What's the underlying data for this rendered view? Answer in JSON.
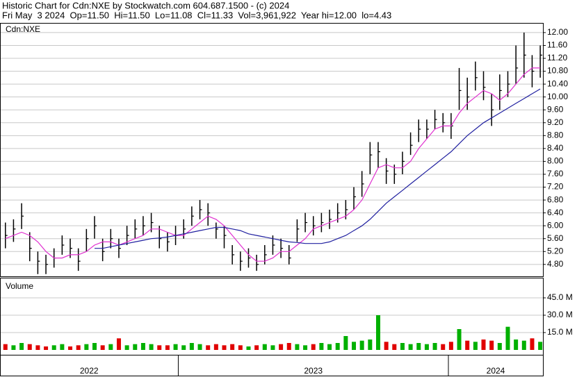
{
  "chart_data": [
    {
      "type": "ohlc",
      "title": "Historic Chart for Cdn:NXE by Stockwatch.com 604.687.1500 - (c) 2024",
      "subtitle": "Fri May  3 2024  Op=11.50  Hi=11.50  Lo=11.08  Cl=11.33  Vol=3,961,922  Year hi=12.00  lo=4.43",
      "label": "Cdn:NXE",
      "color": "#000000",
      "grid": true,
      "xlim": [
        2022.34,
        2024.35
      ],
      "ylim": [
        4.43,
        12.3
      ],
      "yticks": [
        {
          "value": 4.8,
          "label": "4.80"
        },
        {
          "value": 5.2,
          "label": "5.20"
        },
        {
          "value": 5.6,
          "label": "5.60"
        },
        {
          "value": 6.0,
          "label": "6.00"
        },
        {
          "value": 6.4,
          "label": "6.40"
        },
        {
          "value": 6.8,
          "label": "6.80"
        },
        {
          "value": 7.2,
          "label": "7.20"
        },
        {
          "value": 7.6,
          "label": "7.60"
        },
        {
          "value": 8.0,
          "label": "8.00"
        },
        {
          "value": 8.4,
          "label": "8.40"
        },
        {
          "value": 8.8,
          "label": "8.80"
        },
        {
          "value": 9.2,
          "label": "9.20"
        },
        {
          "value": 9.6,
          "label": "9.60"
        },
        {
          "value": 10.0,
          "label": "10.00"
        },
        {
          "value": 10.4,
          "label": "10.40"
        },
        {
          "value": 10.8,
          "label": "10.80"
        },
        {
          "value": 11.2,
          "label": "11.20"
        },
        {
          "value": 11.6,
          "label": "11.60"
        },
        {
          "value": 12.0,
          "label": "12.00"
        }
      ],
      "x": [
        2022.36,
        2022.39,
        2022.42,
        2022.45,
        2022.48,
        2022.51,
        2022.54,
        2022.57,
        2022.6,
        2022.63,
        2022.66,
        2022.69,
        2022.72,
        2022.75,
        2022.78,
        2022.81,
        2022.84,
        2022.87,
        2022.9,
        2022.93,
        2022.96,
        2022.99,
        2023.02,
        2023.05,
        2023.08,
        2023.11,
        2023.14,
        2023.17,
        2023.2,
        2023.23,
        2023.26,
        2023.29,
        2023.32,
        2023.35,
        2023.38,
        2023.41,
        2023.44,
        2023.47,
        2023.5,
        2023.53,
        2023.56,
        2023.59,
        2023.62,
        2023.65,
        2023.68,
        2023.71,
        2023.74,
        2023.77,
        2023.8,
        2023.83,
        2023.86,
        2023.89,
        2023.92,
        2023.95,
        2023.98,
        2024.01,
        2024.04,
        2024.07,
        2024.1,
        2024.13,
        2024.16,
        2024.19,
        2024.22,
        2024.25,
        2024.28,
        2024.31,
        2024.34
      ],
      "high": [
        6.1,
        6.2,
        6.7,
        5.8,
        5.2,
        5.1,
        5.3,
        5.7,
        5.6,
        5.3,
        5.9,
        6.3,
        5.6,
        5.9,
        5.6,
        6.0,
        6.2,
        6.3,
        6.4,
        6.0,
        5.8,
        6.0,
        6.2,
        6.6,
        6.8,
        6.7,
        6.1,
        6.0,
        5.4,
        5.2,
        5.3,
        5.1,
        5.4,
        5.7,
        5.6,
        5.4,
        6.2,
        6.4,
        6.3,
        6.4,
        6.5,
        6.7,
        6.8,
        7.2,
        7.7,
        8.6,
        8.6,
        8.1,
        7.9,
        8.3,
        8.9,
        9.3,
        9.3,
        9.6,
        9.5,
        9.5,
        10.9,
        10.6,
        11.1,
        10.8,
        10.1,
        10.7,
        10.8,
        11.6,
        12.0,
        11.3,
        11.6
      ],
      "low": [
        5.3,
        5.5,
        5.9,
        4.9,
        4.5,
        4.5,
        4.7,
        5.1,
        5.0,
        4.6,
        5.2,
        5.6,
        4.9,
        5.3,
        5.0,
        5.4,
        5.6,
        5.7,
        5.8,
        5.3,
        5.2,
        5.4,
        5.6,
        6.0,
        6.2,
        6.0,
        5.6,
        5.3,
        4.8,
        4.6,
        4.7,
        4.6,
        4.8,
        5.1,
        5.0,
        4.8,
        5.5,
        5.8,
        5.7,
        5.8,
        5.9,
        6.1,
        6.2,
        6.5,
        6.9,
        7.6,
        7.8,
        7.3,
        7.3,
        7.6,
        8.2,
        8.6,
        8.7,
        9.0,
        8.9,
        8.7,
        9.6,
        9.6,
        10.2,
        9.9,
        9.1,
        9.6,
        10.0,
        10.4,
        10.6,
        10.3,
        10.6
      ],
      "close": [
        5.7,
        5.9,
        6.3,
        5.3,
        4.9,
        4.8,
        5.0,
        5.4,
        5.3,
        4.9,
        5.6,
        6.0,
        5.2,
        5.6,
        5.3,
        5.7,
        5.9,
        6.0,
        6.1,
        5.6,
        5.5,
        5.7,
        5.9,
        6.3,
        6.5,
        6.4,
        5.9,
        5.7,
        5.1,
        4.9,
        5.0,
        4.8,
        5.1,
        5.4,
        5.3,
        5.0,
        5.9,
        6.1,
        6.0,
        6.1,
        6.2,
        6.4,
        6.5,
        6.9,
        7.3,
        8.2,
        8.3,
        7.7,
        7.6,
        8.0,
        8.5,
        9.0,
        9.0,
        9.3,
        9.2,
        9.1,
        10.2,
        10.0,
        10.6,
        10.3,
        9.6,
        10.2,
        10.4,
        10.9,
        11.3,
        10.8,
        11.3
      ],
      "moving_averages": [
        {
          "color": "#e030d0",
          "values": [
            5.6,
            5.7,
            5.8,
            5.7,
            5.5,
            5.2,
            5.0,
            5.0,
            5.1,
            5.1,
            5.2,
            5.4,
            5.5,
            5.5,
            5.4,
            5.5,
            5.6,
            5.7,
            5.9,
            5.9,
            5.8,
            5.7,
            5.7,
            5.9,
            6.1,
            6.3,
            6.2,
            6.0,
            5.7,
            5.4,
            5.1,
            4.9,
            4.9,
            5.0,
            5.2,
            5.2,
            5.4,
            5.6,
            5.9,
            6.0,
            6.1,
            6.2,
            6.3,
            6.5,
            6.8,
            7.3,
            7.8,
            7.9,
            7.8,
            7.8,
            8.0,
            8.4,
            8.7,
            9.0,
            9.1,
            9.1,
            9.5,
            9.8,
            10.0,
            10.2,
            10.1,
            9.9,
            10.1,
            10.4,
            10.7,
            10.9,
            10.9
          ]
        },
        {
          "color": "#2020a0",
          "values": [
            null,
            null,
            null,
            null,
            null,
            null,
            null,
            null,
            null,
            null,
            null,
            5.3,
            5.3,
            5.35,
            5.4,
            5.45,
            5.5,
            5.55,
            5.6,
            5.62,
            5.65,
            5.7,
            5.75,
            5.8,
            5.85,
            5.9,
            5.95,
            5.95,
            5.9,
            5.85,
            5.75,
            5.7,
            5.65,
            5.6,
            5.55,
            5.5,
            5.48,
            5.45,
            5.45,
            5.45,
            5.5,
            5.6,
            5.7,
            5.85,
            6.0,
            6.2,
            6.45,
            6.7,
            6.9,
            7.1,
            7.3,
            7.5,
            7.7,
            7.9,
            8.1,
            8.3,
            8.55,
            8.8,
            9.0,
            9.2,
            9.35,
            9.5,
            9.65,
            9.8,
            9.95,
            10.1,
            10.25
          ]
        }
      ]
    },
    {
      "type": "bar",
      "title": "Volume",
      "up_color": "#00b000",
      "down_color": "#e00000",
      "grid": true,
      "xlim": [
        2022.34,
        2024.35
      ],
      "ylim": [
        -4.2,
        62.4
      ],
      "yticks": [
        {
          "value": 15,
          "label": "15.0 M"
        },
        {
          "value": 30,
          "label": "30.0 M"
        },
        {
          "value": 45,
          "label": "45.0 M"
        }
      ],
      "xticks": [
        2023,
        2024
      ],
      "x_labels": [
        "2022",
        "2023",
        "2024"
      ],
      "x": [
        2022.36,
        2022.39,
        2022.42,
        2022.45,
        2022.48,
        2022.51,
        2022.54,
        2022.57,
        2022.6,
        2022.63,
        2022.66,
        2022.69,
        2022.72,
        2022.75,
        2022.78,
        2022.81,
        2022.84,
        2022.87,
        2022.9,
        2022.93,
        2022.96,
        2022.99,
        2023.02,
        2023.05,
        2023.08,
        2023.11,
        2023.14,
        2023.17,
        2023.2,
        2023.23,
        2023.26,
        2023.29,
        2023.32,
        2023.35,
        2023.38,
        2023.41,
        2023.44,
        2023.47,
        2023.5,
        2023.53,
        2023.56,
        2023.59,
        2023.62,
        2023.65,
        2023.68,
        2023.71,
        2023.74,
        2023.77,
        2023.8,
        2023.83,
        2023.86,
        2023.89,
        2023.92,
        2023.95,
        2023.98,
        2024.01,
        2024.04,
        2024.07,
        2024.1,
        2024.13,
        2024.16,
        2024.19,
        2024.22,
        2024.25,
        2024.28,
        2024.31,
        2024.34
      ],
      "values": [
        5,
        4,
        6,
        5,
        4,
        3,
        4,
        5,
        3,
        4,
        5,
        6,
        4,
        5,
        10,
        4,
        5,
        6,
        5,
        4,
        4,
        5,
        4,
        6,
        5,
        4,
        5,
        4,
        5,
        4,
        3,
        4,
        5,
        4,
        5,
        6,
        5,
        4,
        5,
        6,
        5,
        6,
        12,
        7,
        8,
        9,
        30,
        7,
        5,
        6,
        5,
        6,
        5,
        6,
        5,
        7,
        18,
        8,
        7,
        9,
        8,
        6,
        20,
        9,
        8,
        10,
        7
      ]
    }
  ]
}
